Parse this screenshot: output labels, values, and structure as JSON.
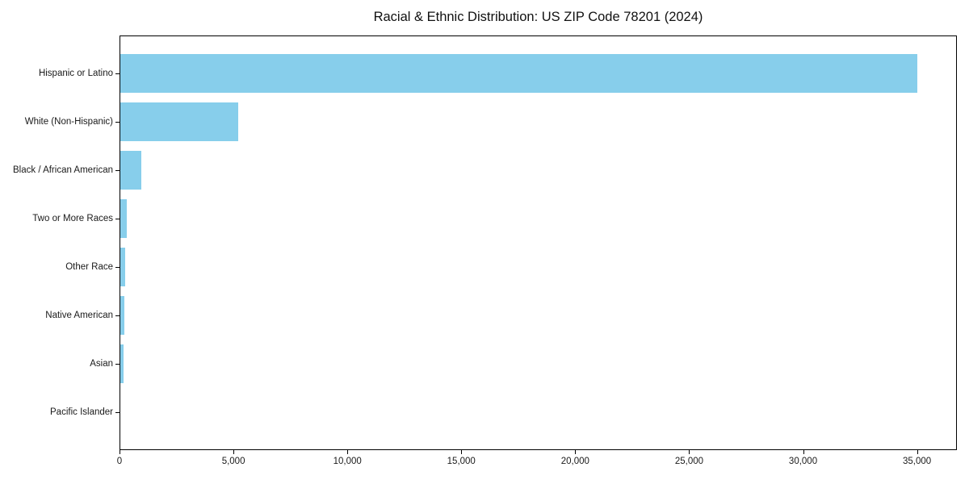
{
  "title": "Racial & Ethnic Distribution: US ZIP Code 78201 (2024)",
  "chart_data": {
    "type": "bar",
    "orientation": "horizontal",
    "title": "Racial & Ethnic Distribution: US ZIP Code 78201 (2024)",
    "categories": [
      "Hispanic or Latino",
      "White (Non-Hispanic)",
      "Black / African American",
      "Two or More Races",
      "Other Race",
      "Native American",
      "Asian",
      "Pacific Islander"
    ],
    "values": [
      35000,
      5210,
      960,
      320,
      240,
      220,
      170,
      10
    ],
    "bar_color": "#87CEEB",
    "xlabel": "",
    "ylabel": "",
    "xlim": [
      0,
      36750
    ],
    "x_tick_values": [
      0,
      5000,
      10000,
      15000,
      20000,
      25000,
      30000,
      35000
    ],
    "x_tick_labels": [
      "0",
      "5,000",
      "10,000",
      "15,000",
      "20,000",
      "25,000",
      "30,000",
      "35,000"
    ],
    "grid": false,
    "legend": false,
    "background": "#ffffff",
    "spine_color": "#000000"
  }
}
